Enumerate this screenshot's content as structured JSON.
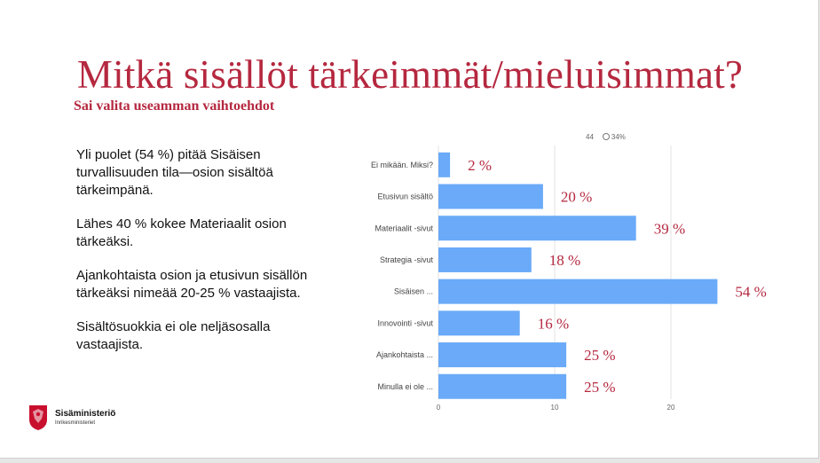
{
  "slide": {
    "title": "Mitkä sisällöt tärkeimmät/mieluisimmat?",
    "subtitle": "Sai valita useamman vaihtoehdot",
    "paragraphs": [
      "Yli puolet (54 %) pitää Sisäisen turvallisuuden tila—osion sisältöä tärkeimpänä.",
      "Lähes 40 % kokee Materiaalit osion tärkeäksi.",
      "Ajankohtaista osion ja etusivun sisällön tärkeäksi nimeää 20-25 % vastaajista.",
      "Sisältösuokkia ei ole neljäsosalla vastaajista."
    ]
  },
  "meta": {
    "count": "44",
    "percent": "34%"
  },
  "logo": {
    "name": "Sisäministeriö",
    "subname": "Inrikesministeriet"
  },
  "colors": {
    "accent": "#b5283f",
    "bar": "#6aaaf8"
  },
  "chart_data": {
    "type": "bar",
    "orientation": "horizontal",
    "categories": [
      "Ei mikään. Miksi?",
      "Etusivun sisältö",
      "Materiaalit -sivut",
      "Strategia -sivut",
      "Sisäisen ...",
      "Innovointi -sivut",
      "Ajankohtaista ...",
      "Minulla ei ole ..."
    ],
    "values": [
      1,
      9,
      17,
      8,
      24,
      7,
      11,
      11
    ],
    "labels": [
      "2 %",
      "20 %",
      "39 %",
      "18 %",
      "54 %",
      "16 %",
      "25 %",
      "25 %"
    ],
    "xlim": [
      0,
      25
    ],
    "xticks": [
      "0",
      "10",
      "20"
    ],
    "grid": true
  }
}
